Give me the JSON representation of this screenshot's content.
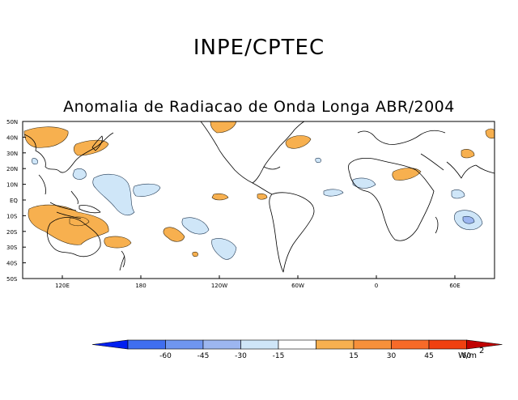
{
  "header": {
    "title": "INPE/CPTEC"
  },
  "map": {
    "title": "Anomalia de Radiacao de Onda Longa ABR/2004",
    "lat_ticks": [
      "50N",
      "40N",
      "30N",
      "20N",
      "10N",
      "EQ",
      "10S",
      "20S",
      "30S",
      "40S",
      "50S"
    ],
    "lon_ticks": [
      "120E",
      "180",
      "120W",
      "60W",
      "0",
      "60E"
    ]
  },
  "colorbar": {
    "labels": [
      "-60",
      "-45",
      "-30",
      "-15",
      "15",
      "30",
      "45",
      "60"
    ],
    "colors": [
      "#0020f0",
      "#3f6ef0",
      "#6f96f0",
      "#9cb6f0",
      "#cfe6f8",
      "#ffffff",
      "#f7b04f",
      "#f7903a",
      "#f76a28",
      "#f04010",
      "#c00000"
    ],
    "unit_base": "W/m",
    "unit_exp": "2"
  }
}
